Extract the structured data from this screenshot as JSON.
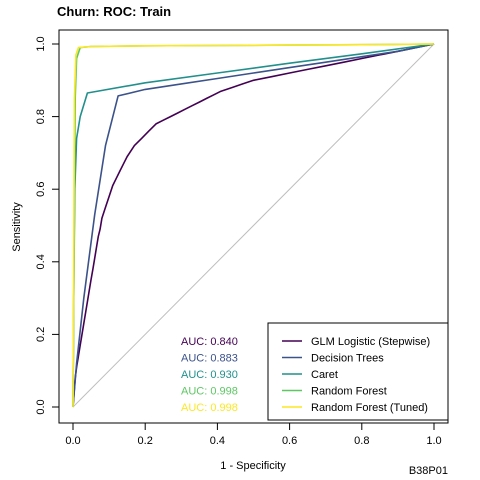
{
  "chart_data": {
    "type": "line",
    "title": "Churn: ROC: Train",
    "xlabel": "1 - Specificity",
    "ylabel": "Sensitivity",
    "xlim": [
      0,
      1
    ],
    "ylim": [
      0,
      1
    ],
    "x_ticks": [
      "0.0",
      "0.2",
      "0.4",
      "0.6",
      "0.8",
      "1.0"
    ],
    "y_ticks": [
      "0.0",
      "0.2",
      "0.4",
      "0.6",
      "0.8",
      "1.0"
    ],
    "grid": false,
    "legend_position": "bottom-right",
    "corner_label": "B38P01",
    "reference_line": {
      "x": [
        0,
        1
      ],
      "y": [
        0,
        1
      ],
      "color": "#bebebe"
    },
    "series": [
      {
        "name": "GLM Logistic (Stepwise)",
        "color": "#440154",
        "auc_label": "AUC: 0.840",
        "x": [
          0.0,
          0.003,
          0.006,
          0.01,
          0.015,
          0.02,
          0.025,
          0.03,
          0.035,
          0.04,
          0.045,
          0.05,
          0.055,
          0.06,
          0.065,
          0.07,
          0.075,
          0.08,
          0.09,
          0.1,
          0.11,
          0.12,
          0.13,
          0.14,
          0.15,
          0.17,
          0.19,
          0.21,
          0.23,
          0.25,
          0.27,
          0.29,
          0.31,
          0.33,
          0.35,
          0.37,
          0.39,
          0.41,
          0.44,
          0.47,
          0.5,
          0.55,
          0.6,
          0.65,
          0.7,
          0.75,
          0.8,
          0.85,
          0.9,
          0.95,
          1.0
        ],
        "y": [
          0.0,
          0.04,
          0.08,
          0.11,
          0.14,
          0.17,
          0.2,
          0.23,
          0.26,
          0.29,
          0.32,
          0.35,
          0.38,
          0.41,
          0.44,
          0.47,
          0.49,
          0.52,
          0.55,
          0.58,
          0.61,
          0.63,
          0.65,
          0.67,
          0.69,
          0.72,
          0.74,
          0.76,
          0.78,
          0.79,
          0.8,
          0.81,
          0.82,
          0.83,
          0.84,
          0.85,
          0.86,
          0.87,
          0.88,
          0.89,
          0.9,
          0.91,
          0.92,
          0.93,
          0.94,
          0.95,
          0.96,
          0.97,
          0.98,
          0.99,
          1.0
        ]
      },
      {
        "name": "Decision Trees",
        "color": "#3b528b",
        "auc_label": "AUC: 0.883",
        "x": [
          0.0,
          0.01,
          0.03,
          0.06,
          0.09,
          0.125,
          0.2,
          0.3,
          0.4,
          0.5,
          0.6,
          0.7,
          0.8,
          0.9,
          1.0
        ],
        "y": [
          0.0,
          0.12,
          0.3,
          0.53,
          0.72,
          0.857,
          0.875,
          0.89,
          0.905,
          0.92,
          0.935,
          0.95,
          0.965,
          0.98,
          1.0
        ],
        "legend_position": "bottom-right"
      },
      {
        "name": "Caret",
        "color": "#21908c",
        "auc_label": "AUC: 0.930",
        "x": [
          0.0,
          0.002,
          0.005,
          0.01,
          0.02,
          0.04,
          0.2,
          0.4,
          0.6,
          0.8,
          1.0
        ],
        "y": [
          0.0,
          0.3,
          0.6,
          0.74,
          0.8,
          0.865,
          0.893,
          0.92,
          0.947,
          0.973,
          1.0
        ]
      },
      {
        "name": "Random Forest",
        "color": "#5dc863",
        "auc_label": "AUC: 0.998",
        "x": [
          0.0,
          0.003,
          0.006,
          0.01,
          0.02,
          0.05,
          0.2,
          0.4,
          0.6,
          0.8,
          1.0
        ],
        "y": [
          0.0,
          0.45,
          0.85,
          0.96,
          0.99,
          0.993,
          0.995,
          0.996,
          0.997,
          0.998,
          1.0
        ]
      },
      {
        "name": "Random Forest (Tuned)",
        "color": "#fde725",
        "auc_label": "AUC: 0.998",
        "x": [
          0.0,
          0.002,
          0.004,
          0.008,
          0.015,
          0.05,
          0.2,
          0.4,
          0.6,
          0.8,
          1.0
        ],
        "y": [
          0.0,
          0.4,
          0.85,
          0.97,
          0.99,
          0.993,
          0.995,
          0.996,
          0.997,
          0.998,
          1.0
        ]
      }
    ]
  }
}
